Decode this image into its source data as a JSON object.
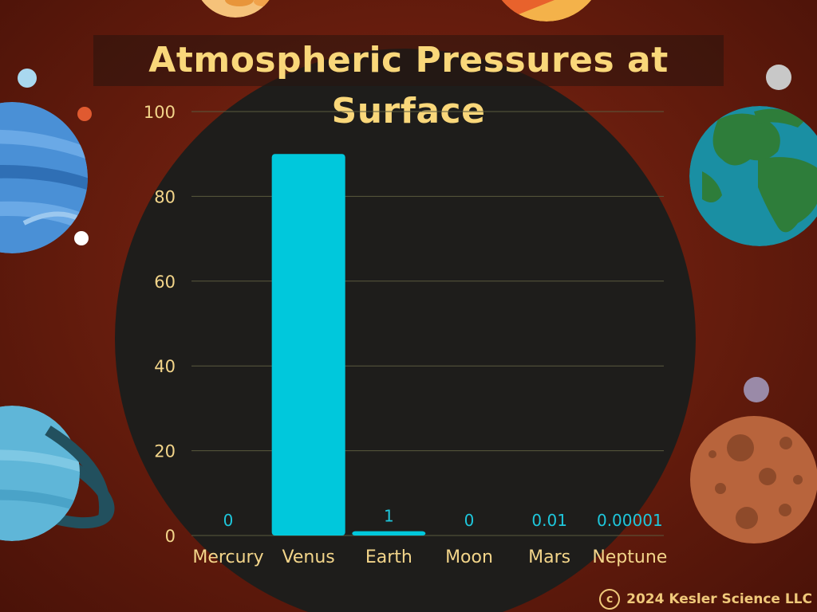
{
  "chart_data": {
    "type": "bar",
    "title": "Atmospheric Pressures at Surface",
    "categories": [
      "Mercury",
      "Venus",
      "Earth",
      "Moon",
      "Mars",
      "Neptune"
    ],
    "values": [
      0,
      90,
      1,
      0,
      0.01,
      1e-05
    ],
    "data_labels": [
      "0",
      "",
      "1",
      "0",
      "0.01",
      "0.00001"
    ],
    "ylim": [
      0,
      100
    ],
    "yticks": [
      0,
      20,
      40,
      60,
      80,
      100
    ],
    "grid": true,
    "legend": "none",
    "colors": {
      "bar": "#00c8dc",
      "text": "#f3d58a",
      "data_label": "#1ec7dc",
      "grid": "#5a5a3e"
    }
  },
  "footer": {
    "copyright_symbol": "c",
    "copyright_text": "2024 Kesler Science LLC"
  },
  "decor_icons": [
    "neptune-planet-icon",
    "earth-planet-icon",
    "uranus-planet-icon",
    "mars-planet-icon",
    "moon-dot-icon",
    "star-dot-icon"
  ]
}
